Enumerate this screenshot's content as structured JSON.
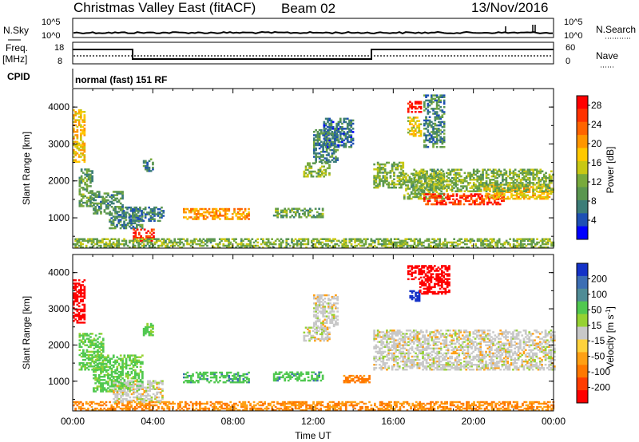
{
  "header": {
    "title": "Christmas Valley East (fitACF)",
    "beam": "Beam 02",
    "date": "13/Nov/2016"
  },
  "top_panels": {
    "nsky_label": "N.Sky",
    "nsearch_label": "N.Search",
    "freq_label_1": "Freq.",
    "freq_label_2": "[MHz]",
    "nave_label": "Nave",
    "cpid_label": "CPID",
    "cpid_text": "normal (fast) 151 RF",
    "noise_ticks": [
      "10^5",
      "10^0"
    ],
    "freq_ticks": [
      "18",
      "8"
    ],
    "nave_ticks": [
      "60",
      "0"
    ]
  },
  "chart_data": [
    {
      "type": "heatmap",
      "name": "power",
      "ylabel": "Slant Range [km]",
      "xlabel": "",
      "x_ticks": [
        "00:00",
        "04:00",
        "08:00",
        "12:00",
        "16:00",
        "20:00",
        "00:00"
      ],
      "y_ticks": [
        "1000",
        "2000",
        "3000",
        "4000"
      ],
      "xlim_hours": [
        0,
        24
      ],
      "ylim_km": [
        180,
        4500
      ],
      "colorbar": {
        "label": "Power [dB]",
        "ticks": [
          "4",
          "8",
          "12",
          "16",
          "20",
          "24",
          "28"
        ],
        "range": [
          0,
          30
        ],
        "colors": [
          "#0000ff",
          "#1e50b4",
          "#3c7d78",
          "#5a9650",
          "#78aa3c",
          "#c8c814",
          "#ffc800",
          "#ff9600",
          "#ff6400",
          "#ff3200",
          "#ff0000"
        ]
      },
      "regions": [
        {
          "t": [
            0.0,
            0.6
          ],
          "r": [
            2500,
            3900
          ],
          "level": 18
        },
        {
          "t": [
            0.3,
            1.0
          ],
          "r": [
            1300,
            2300
          ],
          "level": 10
        },
        {
          "t": [
            1.0,
            2.5
          ],
          "r": [
            1100,
            1700
          ],
          "level": 9
        },
        {
          "t": [
            1.8,
            3.5
          ],
          "r": [
            700,
            1100
          ],
          "level": 8
        },
        {
          "t": [
            2.5,
            4.5
          ],
          "r": [
            900,
            1300
          ],
          "level": 7
        },
        {
          "t": [
            3.5,
            4.0
          ],
          "r": [
            2250,
            2600
          ],
          "level": 8
        },
        {
          "t": [
            5.5,
            8.8
          ],
          "r": [
            950,
            1250
          ],
          "level": 20
        },
        {
          "t": [
            3.0,
            4.0
          ],
          "r": [
            350,
            700
          ],
          "level": 27
        },
        {
          "t": [
            10.0,
            12.5
          ],
          "r": [
            1000,
            1250
          ],
          "level": 10
        },
        {
          "t": [
            11.5,
            12.8
          ],
          "r": [
            2100,
            2500
          ],
          "level": 12
        },
        {
          "t": [
            12.0,
            13.2
          ],
          "r": [
            2500,
            3400
          ],
          "level": 8
        },
        {
          "t": [
            12.5,
            14.0
          ],
          "r": [
            2900,
            3700
          ],
          "level": 6
        },
        {
          "t": [
            15.0,
            16.5
          ],
          "r": [
            1800,
            2500
          ],
          "level": 12
        },
        {
          "t": [
            16.5,
            18.5
          ],
          "r": [
            1500,
            2200
          ],
          "level": 12
        },
        {
          "t": [
            17.5,
            21.5
          ],
          "r": [
            1350,
            1650
          ],
          "level": 26
        },
        {
          "t": [
            20.5,
            24.0
          ],
          "r": [
            1500,
            1900
          ],
          "level": 18
        },
        {
          "t": [
            17.0,
            24.0
          ],
          "r": [
            1700,
            2300
          ],
          "level": 12
        },
        {
          "t": [
            16.7,
            17.4
          ],
          "r": [
            3850,
            4150
          ],
          "level": 29
        },
        {
          "t": [
            16.7,
            17.4
          ],
          "r": [
            3200,
            3700
          ],
          "level": 16
        },
        {
          "t": [
            17.5,
            18.5
          ],
          "r": [
            2900,
            4300
          ],
          "level": 8
        },
        {
          "t": [
            0.0,
            24.0
          ],
          "r": [
            180,
            420
          ],
          "level": 12
        }
      ]
    },
    {
      "type": "heatmap",
      "name": "velocity",
      "ylabel": "Slant Range [km]",
      "xlabel": "Time UT",
      "x_ticks": [
        "00:00",
        "04:00",
        "08:00",
        "12:00",
        "16:00",
        "20:00",
        "00:00"
      ],
      "y_ticks": [
        "1000",
        "2000",
        "3000",
        "4000"
      ],
      "xlim_hours": [
        0,
        24
      ],
      "ylim_km": [
        180,
        4500
      ],
      "colorbar": {
        "label": "Velocity [m s^-1]",
        "ticks": [
          "200",
          "100",
          "50",
          "15",
          "-15",
          "-50",
          "-100",
          "-200"
        ],
        "colors": [
          "#1432c8",
          "#3c6eb4",
          "#508c96",
          "#50c850",
          "#96d232",
          "#c8c8c8",
          "#ffd23c",
          "#ffa014",
          "#ff7800",
          "#ff3c00",
          "#ff0000"
        ]
      },
      "regions": [
        {
          "t": [
            0.0,
            0.6
          ],
          "r": [
            2600,
            3800
          ],
          "level": -200
        },
        {
          "t": [
            0.3,
            1.5
          ],
          "r": [
            1300,
            2300
          ],
          "level": 50
        },
        {
          "t": [
            1.0,
            3.5
          ],
          "r": [
            700,
            1700
          ],
          "level": 50
        },
        {
          "t": [
            2.0,
            4.5
          ],
          "r": [
            400,
            1000
          ],
          "level": 0
        },
        {
          "t": [
            3.5,
            4.0
          ],
          "r": [
            2250,
            2600
          ],
          "level": 50
        },
        {
          "t": [
            5.5,
            8.8
          ],
          "r": [
            950,
            1250
          ],
          "level": 60
        },
        {
          "t": [
            10.0,
            12.5
          ],
          "r": [
            1000,
            1250
          ],
          "level": 60
        },
        {
          "t": [
            11.5,
            12.8
          ],
          "r": [
            2100,
            2500
          ],
          "level": 0
        },
        {
          "t": [
            12.0,
            13.2
          ],
          "r": [
            2500,
            3400
          ],
          "level": 0
        },
        {
          "t": [
            13.5,
            14.8
          ],
          "r": [
            950,
            1150
          ],
          "level": -60
        },
        {
          "t": [
            15.0,
            24.0
          ],
          "r": [
            1300,
            2400
          ],
          "level": 0
        },
        {
          "t": [
            16.7,
            17.4
          ],
          "r": [
            3800,
            4200
          ],
          "level": -200
        },
        {
          "t": [
            16.8,
            17.3
          ],
          "r": [
            3200,
            3500
          ],
          "level": 200
        },
        {
          "t": [
            17.3,
            18.8
          ],
          "r": [
            3400,
            4200
          ],
          "level": -200
        },
        {
          "t": [
            0.0,
            24.0
          ],
          "r": [
            180,
            450
          ],
          "level": -50
        }
      ]
    }
  ]
}
